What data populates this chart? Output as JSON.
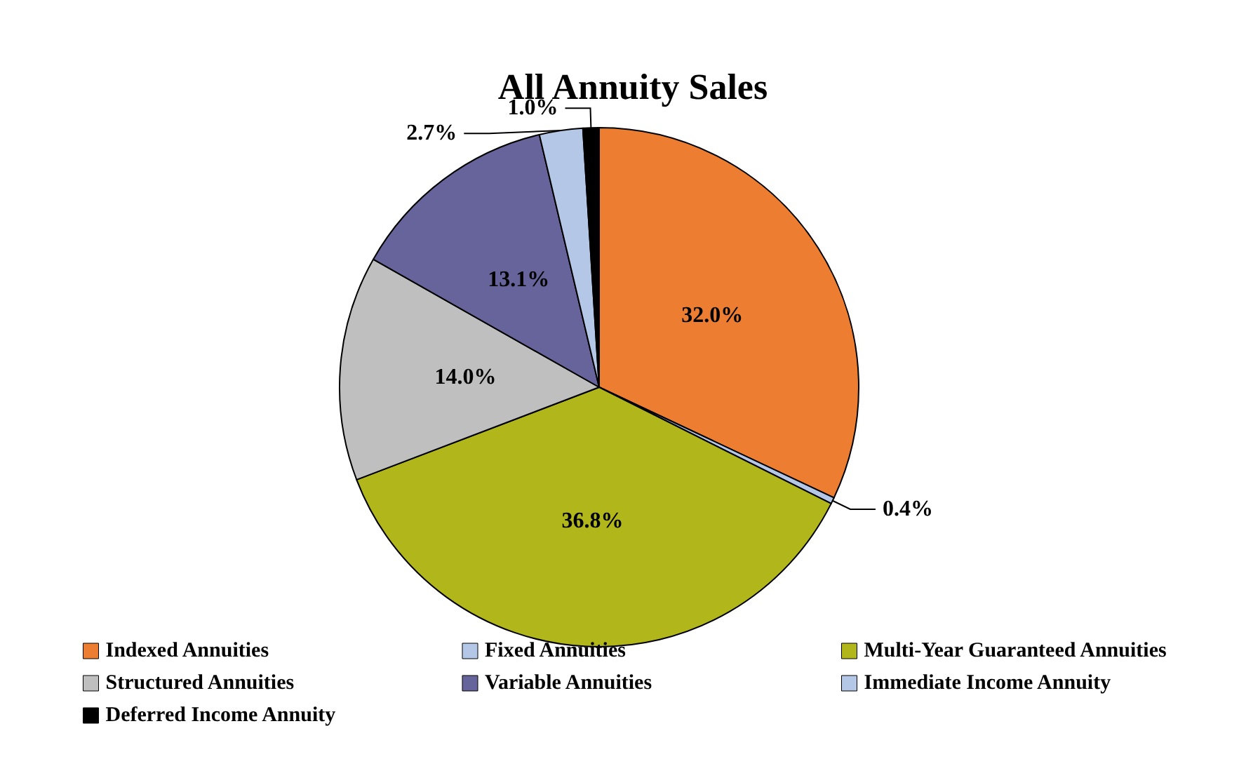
{
  "chart_data": {
    "type": "pie",
    "title": "All Annuity Sales",
    "categories": [
      "Indexed Annuities",
      "Fixed Annuities",
      "Multi-Year Guaranteed Annuities",
      "Structured Annuities",
      "Variable Annuities",
      "Immediate Income Annuity",
      "Deferred Income Annuity"
    ],
    "values": [
      32.0,
      0.4,
      36.8,
      14.0,
      13.1,
      2.7,
      1.0
    ],
    "value_labels": [
      "32.0%",
      "0.4%",
      "36.8%",
      "14.0%",
      "13.1%",
      "2.7%",
      "1.0%"
    ],
    "colors": [
      "#ed7d31",
      "#b4c7e7",
      "#b1b61b",
      "#bfbfbf",
      "#67649b",
      "#b4c7e7",
      "#000000"
    ],
    "legend": "bottom"
  }
}
